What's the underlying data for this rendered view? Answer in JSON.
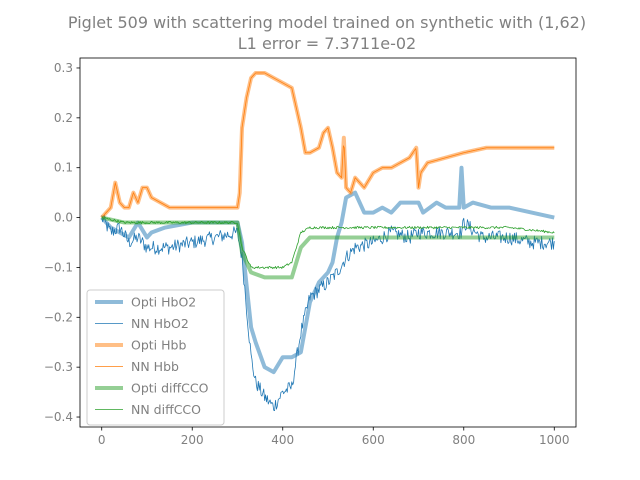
{
  "chart_data": {
    "type": "line",
    "title": "Piglet 509 with scattering model trained on synthetic with (1,62)",
    "subtitle": "L1 error = 7.3711e-02",
    "xlabel": "",
    "ylabel": "",
    "xlim": [
      -48,
      1048
    ],
    "ylim": [
      -0.42,
      0.32
    ],
    "x_ticks": [
      0,
      200,
      400,
      600,
      800,
      1000
    ],
    "x_tick_labels": [
      "0",
      "200",
      "400",
      "600",
      "800",
      "1000"
    ],
    "y_ticks": [
      -0.4,
      -0.3,
      -0.2,
      -0.1,
      0.0,
      0.1,
      0.2,
      0.3
    ],
    "y_tick_labels": [
      "−0.4",
      "−0.3",
      "−0.2",
      "−0.1",
      "0.0",
      "0.1",
      "0.2",
      "0.3"
    ],
    "grid": false,
    "legend_position": "lower-left",
    "series": [
      {
        "name": "Opti HbO2",
        "color": "#1f77b4",
        "style": "thick",
        "x": [
          0,
          20,
          40,
          60,
          80,
          100,
          110,
          140,
          200,
          250,
          300,
          310,
          330,
          340,
          360,
          380,
          400,
          420,
          440,
          460,
          480,
          500,
          510,
          520,
          530,
          540,
          560,
          580,
          600,
          620,
          640,
          660,
          680,
          700,
          710,
          740,
          760,
          790,
          795,
          800,
          820,
          860,
          900,
          950,
          1000
        ],
        "y": [
          0.0,
          -0.02,
          -0.03,
          -0.04,
          -0.01,
          -0.04,
          -0.03,
          -0.02,
          -0.01,
          -0.01,
          -0.01,
          -0.05,
          -0.22,
          -0.25,
          -0.3,
          -0.31,
          -0.28,
          -0.28,
          -0.27,
          -0.17,
          -0.13,
          -0.11,
          -0.09,
          -0.04,
          -0.01,
          0.04,
          0.05,
          0.01,
          0.01,
          0.02,
          0.01,
          0.03,
          0.03,
          0.03,
          0.01,
          0.03,
          0.02,
          0.02,
          0.1,
          0.02,
          0.03,
          0.02,
          0.02,
          0.01,
          0.0
        ]
      },
      {
        "name": "NN HbO2",
        "color": "#1f77b4",
        "style": "thin",
        "x": [
          0,
          20,
          40,
          60,
          80,
          100,
          150,
          200,
          250,
          300,
          310,
          330,
          340,
          360,
          380,
          400,
          420,
          440,
          460,
          500,
          520,
          540,
          560,
          600,
          640,
          680,
          700,
          760,
          795,
          800,
          840,
          900,
          950,
          1000
        ],
        "y": [
          0.0,
          -0.03,
          -0.02,
          -0.05,
          -0.04,
          -0.06,
          -0.06,
          -0.05,
          -0.04,
          -0.03,
          -0.08,
          -0.28,
          -0.33,
          -0.36,
          -0.38,
          -0.35,
          -0.34,
          -0.23,
          -0.16,
          -0.13,
          -0.11,
          -0.08,
          -0.06,
          -0.05,
          -0.03,
          -0.04,
          -0.03,
          -0.03,
          -0.03,
          -0.01,
          -0.04,
          -0.04,
          -0.05,
          -0.05
        ]
      },
      {
        "name": "Opti Hbb",
        "color": "#ff7f0e",
        "style": "thick",
        "x": [
          0,
          20,
          30,
          40,
          50,
          60,
          70,
          80,
          90,
          100,
          110,
          150,
          200,
          250,
          300,
          305,
          310,
          320,
          330,
          340,
          360,
          380,
          400,
          420,
          440,
          450,
          460,
          480,
          490,
          500,
          510,
          520,
          530,
          535,
          540,
          550,
          560,
          580,
          600,
          620,
          640,
          660,
          680,
          695,
          700,
          705,
          720,
          760,
          800,
          850,
          900,
          950,
          1000
        ],
        "y": [
          0.0,
          0.02,
          0.07,
          0.03,
          0.02,
          0.02,
          0.05,
          0.03,
          0.06,
          0.06,
          0.04,
          0.02,
          0.02,
          0.02,
          0.02,
          0.05,
          0.18,
          0.24,
          0.28,
          0.29,
          0.29,
          0.28,
          0.27,
          0.26,
          0.18,
          0.13,
          0.13,
          0.14,
          0.17,
          0.18,
          0.14,
          0.09,
          0.08,
          0.16,
          0.06,
          0.05,
          0.08,
          0.06,
          0.09,
          0.1,
          0.1,
          0.11,
          0.12,
          0.14,
          0.06,
          0.09,
          0.11,
          0.12,
          0.13,
          0.14,
          0.14,
          0.14,
          0.14
        ]
      },
      {
        "name": "NN Hbb",
        "color": "#ff7f0e",
        "style": "thin",
        "x": [
          0,
          20,
          30,
          40,
          50,
          60,
          70,
          80,
          90,
          100,
          110,
          150,
          200,
          250,
          300,
          305,
          310,
          320,
          330,
          340,
          360,
          380,
          400,
          420,
          440,
          450,
          460,
          480,
          490,
          500,
          510,
          520,
          530,
          535,
          540,
          550,
          560,
          580,
          600,
          620,
          640,
          660,
          680,
          695,
          700,
          705,
          720,
          760,
          800,
          850,
          900,
          950,
          1000
        ],
        "y": [
          0.0,
          0.02,
          0.07,
          0.03,
          0.02,
          0.02,
          0.05,
          0.03,
          0.06,
          0.06,
          0.04,
          0.02,
          0.02,
          0.02,
          0.02,
          0.05,
          0.18,
          0.24,
          0.28,
          0.29,
          0.29,
          0.28,
          0.27,
          0.26,
          0.18,
          0.13,
          0.13,
          0.14,
          0.17,
          0.18,
          0.14,
          0.09,
          0.08,
          0.16,
          0.06,
          0.05,
          0.08,
          0.06,
          0.09,
          0.1,
          0.1,
          0.11,
          0.12,
          0.14,
          0.06,
          0.09,
          0.11,
          0.12,
          0.13,
          0.14,
          0.14,
          0.14,
          0.14
        ]
      },
      {
        "name": "Opti diffCCO",
        "color": "#2ca02c",
        "style": "thick",
        "x": [
          0,
          50,
          100,
          150,
          200,
          250,
          300,
          310,
          330,
          360,
          400,
          420,
          440,
          460,
          500,
          550,
          600,
          700,
          800,
          900,
          1000
        ],
        "y": [
          0.0,
          -0.01,
          -0.01,
          -0.01,
          -0.01,
          -0.01,
          -0.01,
          -0.07,
          -0.11,
          -0.12,
          -0.12,
          -0.12,
          -0.06,
          -0.04,
          -0.04,
          -0.04,
          -0.04,
          -0.04,
          -0.04,
          -0.04,
          -0.04
        ]
      },
      {
        "name": "NN diffCCO",
        "color": "#2ca02c",
        "style": "thin",
        "x": [
          0,
          50,
          100,
          150,
          200,
          250,
          300,
          310,
          330,
          360,
          400,
          420,
          440,
          460,
          500,
          550,
          600,
          700,
          800,
          900,
          1000
        ],
        "y": [
          0.0,
          -0.01,
          -0.01,
          -0.01,
          -0.01,
          -0.01,
          -0.01,
          -0.06,
          -0.1,
          -0.1,
          -0.1,
          -0.09,
          -0.03,
          -0.02,
          -0.02,
          -0.02,
          -0.02,
          -0.02,
          -0.02,
          -0.02,
          -0.03
        ]
      }
    ]
  }
}
